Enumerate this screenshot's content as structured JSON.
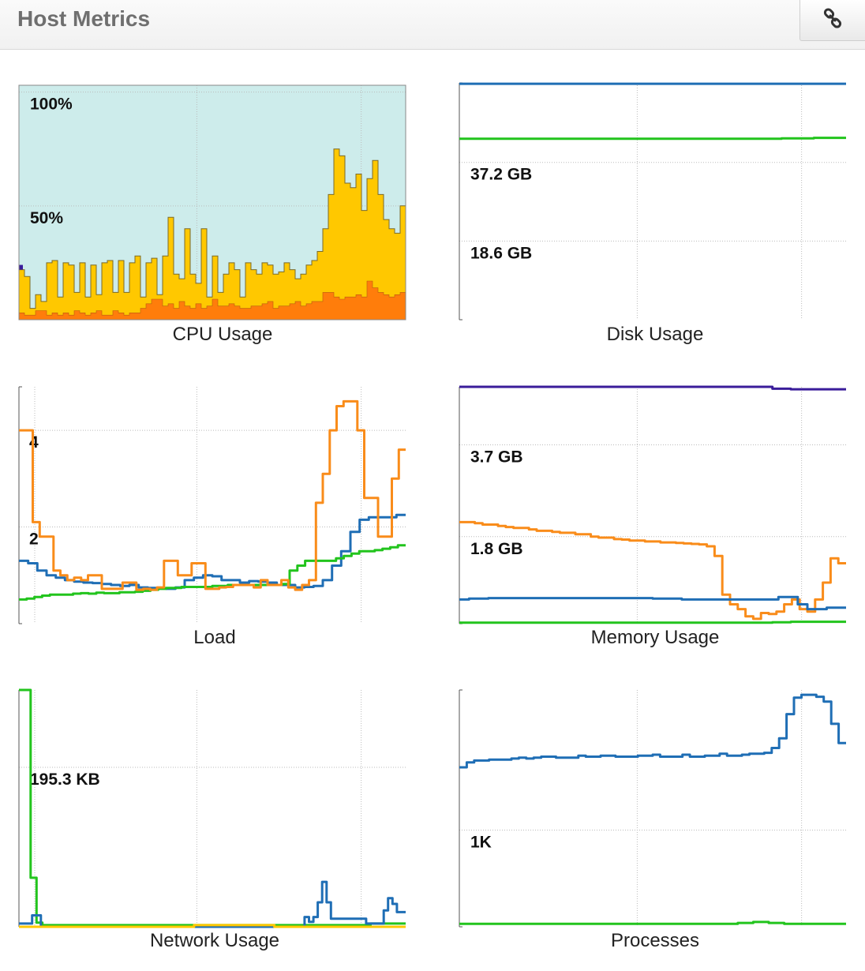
{
  "header": {
    "title": "Host Metrics",
    "link_icon": "link-icon"
  },
  "colors": {
    "blue": "#1f6eb5",
    "green": "#22c41d",
    "orange": "#f98c1a",
    "purple": "#3a1c9a",
    "yellow": "#ffc800",
    "cpu_idle": "#cdeceb",
    "dark_orange": "#ff7d0b",
    "grid": "#bbbbbb",
    "axis": "#555555"
  },
  "chart_data": [
    {
      "id": "cpu",
      "type": "area",
      "title": "CPU Usage",
      "ylim": [
        0,
        103
      ],
      "y_ticks": [
        {
          "value": 100,
          "label": "100%"
        },
        {
          "value": 50,
          "label": "50%"
        }
      ],
      "series": [
        {
          "values": [
            22,
            19,
            5,
            11,
            8,
            25,
            26,
            10,
            25,
            24,
            12,
            25,
            10,
            24,
            11,
            25,
            26,
            12,
            26,
            12,
            25,
            28,
            10,
            25,
            27,
            11,
            28,
            45,
            20,
            18,
            40,
            20,
            16,
            40,
            10,
            28,
            12,
            20,
            25,
            22,
            10,
            25,
            22,
            20,
            25,
            24,
            20,
            21,
            25,
            22,
            18,
            20,
            24,
            26,
            30,
            40,
            55,
            75,
            72,
            60,
            58,
            64,
            48,
            62,
            70,
            55,
            44,
            40,
            38,
            50
          ]
        },
        {
          "values": [
            3,
            2,
            2,
            4,
            4,
            2,
            3,
            2,
            3,
            2,
            4,
            3,
            2,
            3,
            4,
            2,
            2,
            4,
            3,
            2,
            3,
            3,
            5,
            7,
            9,
            9,
            6,
            7,
            5,
            8,
            6,
            5,
            7,
            5,
            6,
            9,
            6,
            6,
            7,
            6,
            5,
            5,
            6,
            6,
            7,
            8,
            5,
            6,
            6,
            7,
            8,
            6,
            7,
            8,
            8,
            12,
            12,
            10,
            9,
            10,
            10,
            11,
            10,
            17,
            14,
            12,
            11,
            10,
            11,
            12
          ]
        }
      ]
    },
    {
      "id": "disk",
      "type": "line",
      "title": "Disk Usage",
      "ylim": [
        0,
        56
      ],
      "y_ticks": [
        {
          "value": 37.2,
          "label": "37.2 GB"
        },
        {
          "value": 18.6,
          "label": "18.6 GB"
        }
      ],
      "series": [
        {
          "values": [
            55.8,
            55.8,
            55.8,
            55.8,
            55.8,
            55.8,
            55.8,
            55.8,
            55.8,
            55.8,
            55.8,
            55.8
          ]
        },
        {
          "values": [
            42.8,
            42.8,
            42.8,
            42.8,
            42.8,
            42.8,
            42.8,
            42.8,
            42.8,
            42.8,
            42.9,
            43.0
          ]
        }
      ]
    },
    {
      "id": "load",
      "type": "line",
      "title": "Load",
      "ylim": [
        0,
        4.9
      ],
      "y_ticks": [
        {
          "value": 4,
          "label": "4"
        },
        {
          "value": 2,
          "label": "2"
        }
      ],
      "series": [
        {
          "values": [
            1.3,
            1.25,
            1.1,
            1.0,
            0.95,
            0.9,
            0.87,
            0.85,
            0.84,
            0.82,
            0.8,
            0.78,
            0.8,
            0.75,
            0.74,
            0.73,
            0.72,
            0.75,
            0.9,
            0.95,
            1.0,
            0.98,
            0.9,
            0.9,
            0.85,
            0.88,
            0.87,
            0.85,
            0.8,
            0.8,
            0.75,
            0.76,
            0.78,
            0.9,
            1.2,
            1.5,
            1.9,
            2.15,
            2.2,
            2.2,
            2.2,
            2.25
          ]
        },
        {
          "values": [
            0.5,
            0.52,
            0.55,
            0.58,
            0.6,
            0.6,
            0.6,
            0.62,
            0.63,
            0.62,
            0.64,
            0.63,
            0.63,
            0.65,
            0.65,
            0.66,
            0.68,
            0.7,
            0.72,
            0.74,
            0.74,
            0.76,
            0.76,
            0.76,
            0.76,
            0.78,
            0.78,
            0.8,
            0.8,
            0.8,
            0.8,
            0.8,
            0.8,
            0.8,
            0.82,
            1.1,
            1.2,
            1.3,
            1.3,
            1.3,
            1.3,
            1.35,
            1.4,
            1.45,
            1.5,
            1.5,
            1.52,
            1.55,
            1.58,
            1.62
          ]
        },
        {
          "values": [
            4.0,
            4.0,
            2.1,
            1.8,
            1.8,
            1.1,
            1.0,
            0.9,
            0.95,
            0.9,
            1.0,
            1.0,
            0.72,
            0.72,
            0.72,
            0.85,
            0.85,
            0.7,
            0.72,
            0.7,
            0.75,
            1.3,
            1.3,
            1.0,
            1.0,
            1.25,
            1.25,
            0.72,
            0.72,
            0.75,
            0.76,
            0.8,
            0.8,
            0.8,
            0.75,
            0.9,
            0.8,
            0.8,
            0.9,
            0.75,
            0.7,
            0.8,
            0.9,
            2.5,
            3.1,
            4.0,
            4.5,
            4.6,
            4.6,
            4.0,
            2.6,
            2.6,
            1.8,
            1.8,
            3.0,
            3.6
          ]
        }
      ]
    },
    {
      "id": "memory",
      "type": "line",
      "title": "Memory Usage",
      "ylim": [
        0,
        4.9
      ],
      "y_ticks": [
        {
          "value": 3.7,
          "label": "3.7 GB"
        },
        {
          "value": 1.8,
          "label": "1.8 GB"
        }
      ],
      "series": [
        {
          "values": [
            4.9,
            4.9,
            4.9,
            4.9,
            4.9,
            4.9,
            4.9,
            4.9,
            4.9,
            4.9,
            4.9,
            4.9,
            4.9,
            4.9,
            4.9,
            4.9,
            4.9,
            4.86,
            4.85,
            4.85,
            4.85
          ]
        },
        {
          "values": [
            2.1,
            2.1,
            2.08,
            2.05,
            2.05,
            2.02,
            2.0,
            1.98,
            1.98,
            1.95,
            1.92,
            1.92,
            1.9,
            1.88,
            1.88,
            1.85,
            1.85,
            1.8,
            1.78,
            1.78,
            1.75,
            1.74,
            1.72,
            1.72,
            1.7,
            1.7,
            1.68,
            1.68,
            1.67,
            1.66,
            1.65,
            1.64,
            1.6,
            1.4,
            0.6,
            0.4,
            0.3,
            0.15,
            0.1,
            0.22,
            0.2,
            0.25,
            0.4,
            0.5,
            0.3,
            0.25,
            0.5,
            0.85,
            1.35,
            1.25
          ]
        },
        {
          "values": [
            0.5,
            0.52,
            0.52,
            0.53,
            0.53,
            0.53,
            0.53,
            0.53,
            0.53,
            0.53,
            0.53,
            0.53,
            0.53,
            0.53,
            0.53,
            0.53,
            0.53,
            0.53,
            0.53,
            0.53,
            0.52,
            0.52,
            0.52,
            0.5,
            0.5,
            0.5,
            0.5,
            0.5,
            0.5,
            0.5,
            0.5,
            0.5,
            0.5,
            0.55,
            0.55,
            0.4,
            0.3,
            0.3,
            0.33,
            0.33
          ]
        },
        {
          "values": [
            0.02,
            0.02,
            0.02,
            0.02,
            0.02,
            0.02,
            0.02,
            0.02,
            0.02,
            0.02,
            0.02,
            0.02,
            0.02,
            0.02,
            0.02,
            0.02,
            0.02,
            0.03,
            0.04,
            0.04,
            0.04
          ]
        }
      ]
    },
    {
      "id": "network",
      "type": "line",
      "title": "Network Usage",
      "ylim": [
        0,
        290
      ],
      "y_ticks": [
        {
          "value": 195.3,
          "label": "195.3 KB"
        }
      ],
      "series": [
        {
          "values": [
            290,
            290,
            60,
            5,
            2,
            2,
            2,
            2,
            2,
            2,
            2,
            2,
            2,
            2,
            2,
            2,
            2,
            2,
            2,
            2,
            2,
            2,
            2,
            2,
            2,
            2,
            2,
            2,
            2,
            2,
            2,
            2,
            2,
            2,
            2,
            2,
            2,
            2,
            2,
            2,
            2,
            2,
            2,
            2,
            2,
            2,
            2,
            2,
            2,
            2,
            2,
            2,
            2,
            2,
            2,
            2,
            2,
            2,
            2,
            2,
            4,
            4,
            4,
            4,
            4,
            4
          ]
        },
        {
          "values": [
            4,
            4,
            4,
            14,
            14,
            0,
            0,
            0,
            0,
            0,
            0,
            0,
            0,
            0,
            0,
            0,
            0,
            0,
            0,
            0,
            0,
            0,
            0,
            0,
            0,
            0,
            0,
            0,
            0,
            0,
            0,
            0,
            0,
            0,
            0,
            0,
            0,
            0,
            0,
            0,
            0,
            0,
            0,
            0,
            0,
            0,
            0,
            0,
            0,
            0,
            0,
            0,
            0,
            0,
            0,
            0,
            0,
            0,
            0,
            0,
            0,
            0,
            0,
            0,
            0,
            12,
            6,
            12,
            30,
            55,
            30,
            10,
            10,
            10,
            10,
            10,
            10,
            10,
            10,
            4,
            4,
            4,
            4,
            20,
            35,
            28,
            18,
            18
          ]
        },
        {
          "values": [
            0,
            0,
            0,
            0,
            0,
            0,
            0,
            0,
            0,
            0,
            0,
            0,
            0,
            0,
            0,
            0,
            0,
            0,
            0,
            0,
            0,
            0,
            0,
            0,
            2,
            2,
            2,
            2,
            2,
            2,
            2,
            2,
            2,
            2,
            2,
            0,
            0,
            0,
            0,
            0,
            0,
            0,
            0,
            0,
            0,
            0,
            0,
            0,
            0,
            0,
            0,
            0,
            0
          ]
        }
      ]
    },
    {
      "id": "processes",
      "type": "line",
      "title": "Processes",
      "ylim": [
        0,
        2.45
      ],
      "y_ticks": [
        {
          "value": 1.0,
          "label": "1K"
        }
      ],
      "series": [
        {
          "values": [
            1.65,
            1.7,
            1.72,
            1.72,
            1.73,
            1.73,
            1.73,
            1.74,
            1.75,
            1.74,
            1.75,
            1.76,
            1.76,
            1.75,
            1.75,
            1.75,
            1.77,
            1.76,
            1.76,
            1.77,
            1.77,
            1.76,
            1.76,
            1.76,
            1.77,
            1.77,
            1.78,
            1.76,
            1.76,
            1.76,
            1.78,
            1.76,
            1.76,
            1.77,
            1.77,
            1.79,
            1.77,
            1.77,
            1.78,
            1.79,
            1.79,
            1.8,
            1.85,
            1.95,
            2.2,
            2.37,
            2.4,
            2.4,
            2.38,
            2.33,
            2.1,
            1.9
          ]
        },
        {
          "values": [
            0.03,
            0.03,
            0.03,
            0.03,
            0.03,
            0.03,
            0.03,
            0.03,
            0.03,
            0.03,
            0.03,
            0.03,
            0.03,
            0.03,
            0.03,
            0.03,
            0.03,
            0.03,
            0.04,
            0.05,
            0.04,
            0.03,
            0.03,
            0.03,
            0.03
          ]
        }
      ]
    }
  ]
}
